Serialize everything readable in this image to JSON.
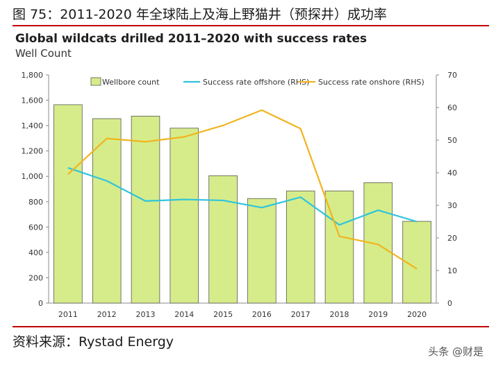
{
  "figure_title": "图 75：2011-2020 年全球陆上及海上野猫井（预探井）成功率",
  "source": "资料来源：Rystad Energy",
  "watermark": "头条 @财是",
  "colors": {
    "bar": "#d6ec8a",
    "bar_edge": "#555555",
    "offshore": "#2ec4dd",
    "onshore": "#f0b41e",
    "rule": "#c00000"
  },
  "chart_data": {
    "type": "bar",
    "title": "Global wildcats drilled 2011–2020 with success rates",
    "subtitle": "Well Count",
    "categories": [
      "2011",
      "2012",
      "2013",
      "2014",
      "2015",
      "2016",
      "2017",
      "2018",
      "2019",
      "2020"
    ],
    "series": [
      {
        "name": "Wellbore count",
        "type": "bar",
        "axis": "left",
        "values": [
          1565,
          1455,
          1475,
          1380,
          1005,
          825,
          885,
          885,
          950,
          645
        ]
      },
      {
        "name": "Success rate offshore (RHS)",
        "type": "line",
        "axis": "right",
        "values": [
          41.5,
          37.5,
          31.3,
          31.8,
          31.5,
          29.3,
          32.5,
          24.0,
          28.5,
          25.0
        ]
      },
      {
        "name": "Success rate onshore (RHS)",
        "type": "line",
        "axis": "right",
        "values": [
          39.5,
          50.5,
          49.5,
          51.0,
          54.5,
          59.2,
          53.5,
          20.5,
          18.0,
          10.5
        ]
      }
    ],
    "ylim": [
      0,
      1800
    ],
    "yticks": [
      "0",
      "200",
      "400",
      "600",
      "800",
      "1,000",
      "1,200",
      "1,400",
      "1,600",
      "1,800"
    ],
    "y2lim": [
      0,
      70
    ],
    "y2ticks": [
      "0",
      "10",
      "20",
      "30",
      "40",
      "50",
      "60",
      "70"
    ],
    "legend": "top",
    "grid": false
  }
}
